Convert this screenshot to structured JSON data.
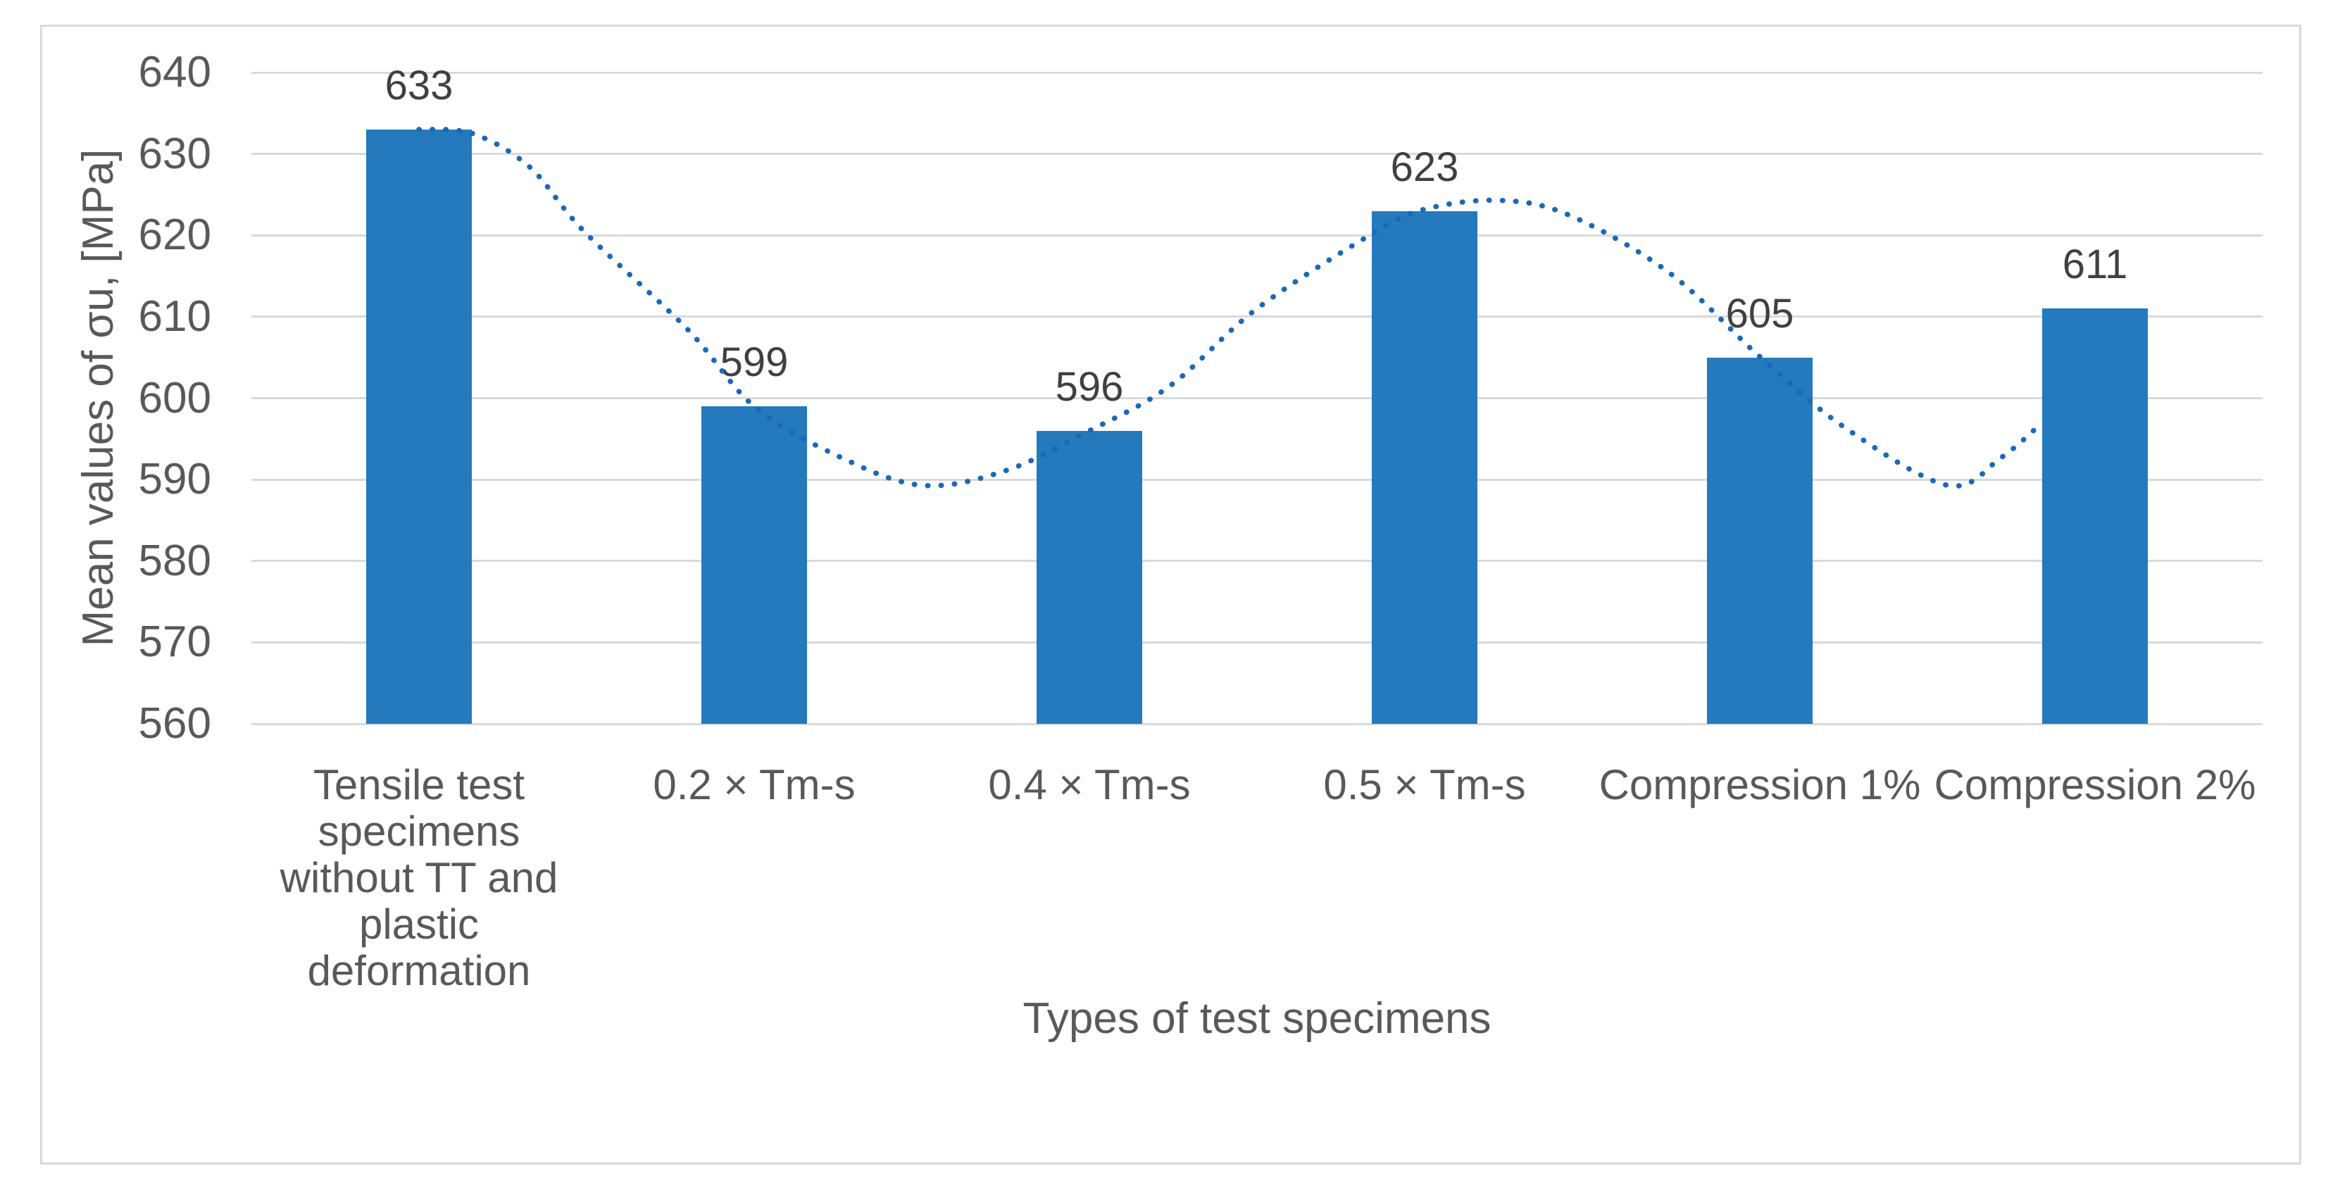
{
  "chart_data": {
    "type": "bar",
    "title": "",
    "categories": [
      "Tensile test\nspecimens\nwithout TT and\nplastic\ndeformation",
      "0.2 × Tm-s",
      "0.4 × Tm-s",
      "0.5 × Tm-s",
      "Compression 1%",
      "Compression 2%"
    ],
    "values": [
      633,
      599,
      596,
      623,
      605,
      611
    ],
    "data_labels": [
      "633",
      "599",
      "596",
      "623",
      "605",
      "611"
    ],
    "xlabel": "Types of test specimens",
    "ylabel": "Mean values of σu, [MPa]",
    "ylim": [
      560,
      640
    ],
    "ytick_step": 10,
    "yticks": [
      640,
      630,
      620,
      610,
      600,
      590,
      580,
      570,
      560
    ],
    "grid": true,
    "legend": "none",
    "series": [
      {
        "name": "Mean ultimate stress bars",
        "values": [
          633,
          599,
          596,
          623,
          605,
          611
        ]
      },
      {
        "name": "Dotted smoothed trendline",
        "points_category_value": [
          [
            0.0,
            633.0
          ],
          [
            0.16,
            632.5
          ],
          [
            0.33,
            628.4
          ],
          [
            0.49,
            620.6
          ],
          [
            0.8,
            608.5
          ],
          [
            1.0,
            599.0
          ],
          [
            1.25,
            592.9
          ],
          [
            1.5,
            589.3
          ],
          [
            1.75,
            591.1
          ],
          [
            2.0,
            596.0
          ],
          [
            2.24,
            601.5
          ],
          [
            2.5,
            611.0
          ],
          [
            2.84,
            620.1
          ],
          [
            3.0,
            623.2
          ],
          [
            3.22,
            624.3
          ],
          [
            3.43,
            622.5
          ],
          [
            3.73,
            615.4
          ],
          [
            4.0,
            605.1
          ],
          [
            4.25,
            596.5
          ],
          [
            4.56,
            589.3
          ],
          [
            4.72,
            592.7
          ],
          [
            4.84,
            596.9
          ]
        ]
      }
    ],
    "colors": {
      "bar_fill": "#2579BD",
      "trendline_dots": "#1B69B6",
      "gridline": "#D9D9D9",
      "frame_border": "#D9D9D9",
      "axis_tick_text": "#595959",
      "axis_title_text": "#595959",
      "category_text": "#595959",
      "data_label_text": "#404040",
      "background": "#FFFFFF"
    }
  }
}
